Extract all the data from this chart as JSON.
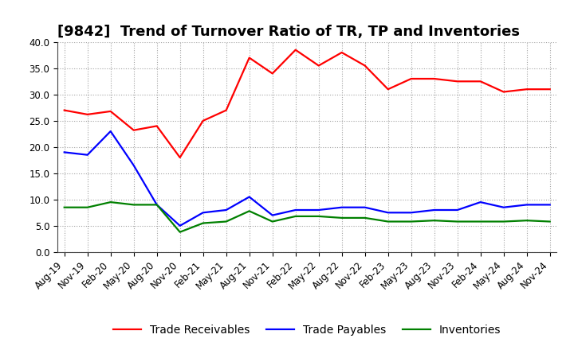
{
  "title": "[9842]  Trend of Turnover Ratio of TR, TP and Inventories",
  "xlabels": [
    "Aug-19",
    "Nov-19",
    "Feb-20",
    "May-20",
    "Aug-20",
    "Nov-20",
    "Feb-21",
    "May-21",
    "Aug-21",
    "Nov-21",
    "Feb-22",
    "May-22",
    "Aug-22",
    "Nov-22",
    "Feb-23",
    "May-23",
    "Aug-23",
    "Nov-23",
    "Feb-24",
    "May-24",
    "Aug-24",
    "Nov-24"
  ],
  "trade_receivables": [
    27.0,
    26.2,
    26.8,
    23.2,
    24.0,
    18.0,
    25.0,
    27.0,
    37.0,
    34.0,
    38.5,
    35.5,
    38.0,
    35.5,
    31.0,
    33.0,
    33.0,
    32.5,
    32.5,
    30.5,
    31.0,
    31.0
  ],
  "trade_payables": [
    19.0,
    18.5,
    23.0,
    16.5,
    9.0,
    5.0,
    7.5,
    8.0,
    10.5,
    7.0,
    8.0,
    8.0,
    8.5,
    8.5,
    7.5,
    7.5,
    8.0,
    8.0,
    9.5,
    8.5,
    9.0,
    9.0
  ],
  "inventories": [
    8.5,
    8.5,
    9.5,
    9.0,
    9.0,
    3.8,
    5.5,
    5.8,
    7.8,
    5.8,
    6.8,
    6.8,
    6.5,
    6.5,
    5.8,
    5.8,
    6.0,
    5.8,
    5.8,
    5.8,
    6.0,
    5.8
  ],
  "color_tr": "#FF0000",
  "color_tp": "#0000FF",
  "color_inv": "#008000",
  "ylim": [
    0.0,
    40.0
  ],
  "yticks": [
    0.0,
    5.0,
    10.0,
    15.0,
    20.0,
    25.0,
    30.0,
    35.0,
    40.0
  ],
  "legend_labels": [
    "Trade Receivables",
    "Trade Payables",
    "Inventories"
  ],
  "background_color": "#FFFFFF",
  "grid_color": "#999999",
  "title_fontsize": 13,
  "tick_fontsize": 8.5,
  "legend_fontsize": 10
}
